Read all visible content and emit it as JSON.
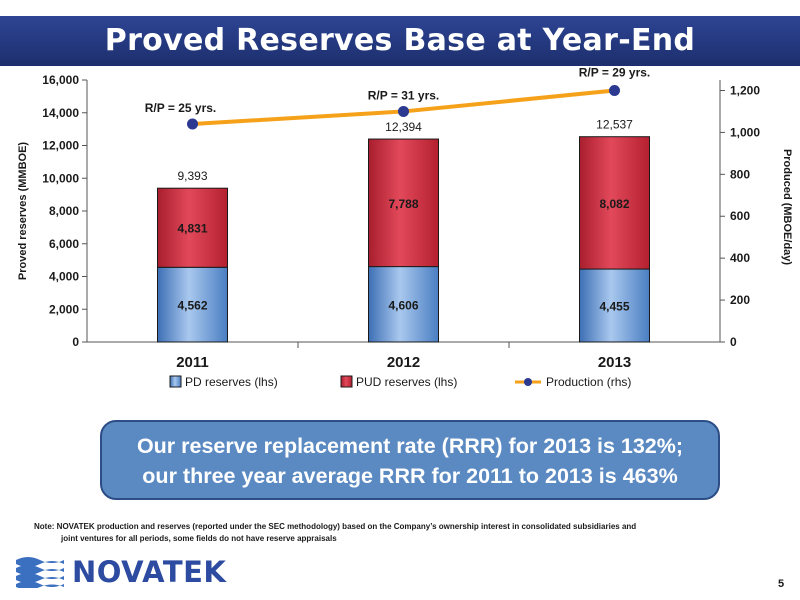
{
  "title": "Proved Reserves Base at Year-End",
  "chart_data": {
    "type": "bar",
    "stacked": true,
    "categories": [
      "2011",
      "2012",
      "2013"
    ],
    "series": [
      {
        "name": "PD reserves (lhs)",
        "axis": "left",
        "color": "#5b8fd0",
        "values": [
          4562,
          4606,
          4455
        ],
        "labels": [
          "4,562",
          "4,606",
          "4,455"
        ]
      },
      {
        "name": "PUD reserves (lhs)",
        "axis": "left",
        "color": "#cc2a3c",
        "values": [
          4831,
          7788,
          8082
        ],
        "labels": [
          "4,831",
          "7,788",
          "8,082"
        ]
      },
      {
        "name": "Production (rhs)",
        "axis": "right",
        "type": "line",
        "color": "#f5a11a",
        "marker_color": "#2b3990",
        "values": [
          1040,
          1100,
          1200
        ]
      }
    ],
    "totals": [
      "9,393",
      "12,394",
      "12,537"
    ],
    "rp_labels": [
      "R/P = 25 yrs.",
      "R/P = 31 yrs.",
      "R/P = 29 yrs."
    ],
    "ylabel": "Proved reserves (MMBOE)",
    "y2label": "Produced (MBOE/day)",
    "ylim": [
      0,
      16000
    ],
    "y2lim": [
      0,
      1250
    ],
    "yticks": [
      "0",
      "2,000",
      "4,000",
      "6,000",
      "8,000",
      "10,000",
      "12,000",
      "14,000",
      "16,000"
    ],
    "y2ticks": [
      "0",
      "200",
      "400",
      "600",
      "800",
      "1,000",
      "1,200"
    ],
    "legend_position": "bottom",
    "grid": false
  },
  "callout": {
    "line1": "Our reserve replacement rate (RRR) for 2013 is 132%;",
    "line2": "our three year average RRR for 2011 to 2013 is 463%"
  },
  "note": {
    "line1": "Note:  NOVATEK production and reserves (reported under the SEC methodology) based on the Company’s ownership interest in consolidated subsidiaries and",
    "line2": "joint ventures for all periods, some fields do not have reserve appraisals"
  },
  "logo": {
    "text": "NOVATEK"
  },
  "page_number": "5",
  "colors": {
    "brand_blue": "#23377d",
    "pd": "#5b8fd0",
    "pud": "#cc2a3c",
    "production": "#f5a11a"
  }
}
